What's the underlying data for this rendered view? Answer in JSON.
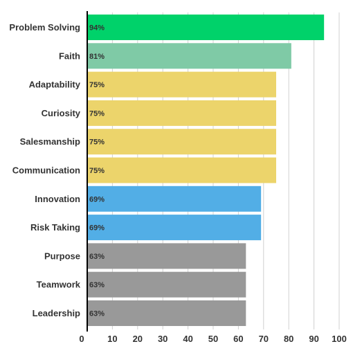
{
  "chart_data": {
    "type": "bar",
    "orientation": "horizontal",
    "title": "",
    "xlabel": "",
    "ylabel": "",
    "xlim": [
      0,
      100
    ],
    "grid": true,
    "ticks": [
      "0",
      "10",
      "20",
      "30",
      "40",
      "50",
      "60",
      "70",
      "80",
      "90",
      "100"
    ],
    "categories": [
      "Problem Solving",
      "Faith",
      "Adaptability",
      "Curiosity",
      "Salesmanship",
      "Communication",
      "Innovation",
      "Risk Taking",
      "Purpose",
      "Teamwork",
      "Leadership"
    ],
    "values": [
      94,
      81,
      75,
      75,
      75,
      75,
      69,
      69,
      63,
      63,
      63
    ],
    "value_labels": [
      "94%",
      "81%",
      "75%",
      "75%",
      "75%",
      "75%",
      "69%",
      "69%",
      "63%",
      "63%",
      "63%"
    ],
    "colors": [
      "#00d26a",
      "#7fcaa6",
      "#ecd46b",
      "#ecd46b",
      "#ecd46b",
      "#ecd46b",
      "#52aee6",
      "#52aee6",
      "#999999",
      "#999999",
      "#999999"
    ]
  }
}
